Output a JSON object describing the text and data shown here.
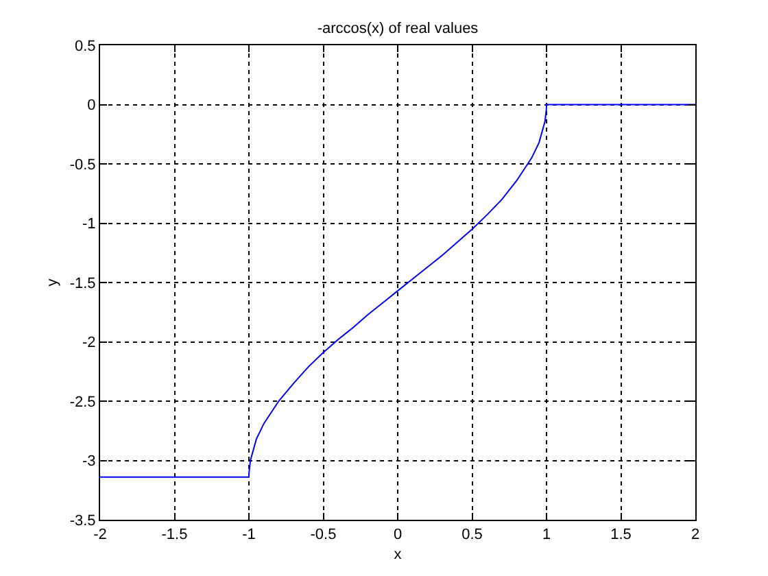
{
  "chart_data": {
    "type": "line",
    "title": "-arccos(x) of real values",
    "xlabel": "x",
    "ylabel": "y",
    "series": [
      {
        "color": "#0000ff",
        "x": [
          -2,
          -1,
          -0.999,
          -0.99,
          -0.95,
          -0.9,
          -0.8,
          -0.7,
          -0.6,
          -0.5,
          -0.4,
          -0.3,
          -0.2,
          -0.1,
          0,
          0.1,
          0.2,
          0.3,
          0.4,
          0.5,
          0.6,
          0.7,
          0.8,
          0.9,
          0.95,
          0.99,
          0.999,
          1,
          2
        ],
        "values": [
          -3.14,
          -3.14,
          -3.1,
          -3.0,
          -2.82,
          -2.69,
          -2.5,
          -2.35,
          -2.21,
          -2.09,
          -1.98,
          -1.88,
          -1.77,
          -1.67,
          -1.57,
          -1.47,
          -1.37,
          -1.27,
          -1.16,
          -1.05,
          -0.93,
          -0.8,
          -0.64,
          -0.45,
          -0.32,
          -0.14,
          -0.04,
          0,
          0
        ]
      }
    ],
    "xlim": [
      -2,
      2
    ],
    "xticks": [
      -2,
      -1.5,
      -1,
      -0.5,
      0,
      0.5,
      1,
      1.5,
      2
    ],
    "ylim": [
      -3.5,
      0.5
    ],
    "yticks": [
      -3.5,
      -3,
      -2.5,
      -2,
      -1.5,
      -1,
      -0.5,
      0,
      0.5
    ],
    "grid": true,
    "legend": false,
    "marker": "none",
    "line_style": "solid"
  }
}
